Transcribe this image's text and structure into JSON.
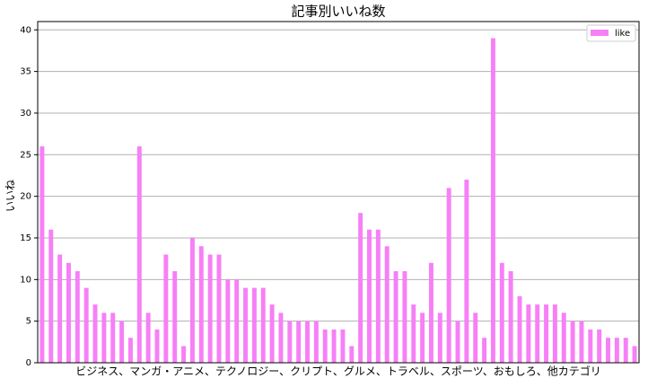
{
  "chart_data": {
    "type": "bar",
    "title": "記事別いいね数",
    "xlabel": "ビジネス、マンガ・アニメ、テクノロジー、クリプト、グルメ、トラベル、スポーツ、おもしろ、他カテゴリ",
    "ylabel": "いいね",
    "categories": [
      null,
      null,
      null,
      null,
      null,
      null,
      null,
      null,
      null,
      null,
      null,
      null,
      null,
      null,
      null,
      null,
      null,
      null,
      null,
      null,
      null,
      null,
      null,
      null,
      null,
      null,
      null,
      null,
      null,
      null,
      null,
      null,
      null,
      null,
      null,
      null,
      null,
      null,
      null,
      null,
      null,
      null,
      null,
      null,
      null,
      null,
      null,
      null,
      null,
      null,
      null,
      null,
      null,
      null,
      null,
      null,
      null,
      null,
      null,
      null,
      null,
      null,
      null,
      null,
      null,
      null,
      null,
      null
    ],
    "series": [
      {
        "name": "like",
        "color": "#f77ff7",
        "values": [
          26,
          16,
          13,
          12,
          11,
          9,
          7,
          6,
          6,
          5,
          3,
          26,
          6,
          4,
          13,
          11,
          2,
          15,
          14,
          13,
          13,
          10,
          10,
          9,
          9,
          9,
          7,
          6,
          5,
          5,
          5,
          5,
          4,
          4,
          4,
          2,
          18,
          16,
          16,
          14,
          11,
          11,
          7,
          6,
          12,
          6,
          21,
          5,
          22,
          6,
          3,
          39,
          12,
          11,
          8,
          7,
          7,
          7,
          7,
          6,
          5,
          5,
          4,
          4,
          3,
          3,
          3,
          2
        ]
      }
    ],
    "ylim": [
      0,
      41
    ],
    "yticks": [
      0,
      5,
      10,
      15,
      20,
      25,
      30,
      35,
      40
    ],
    "grid": true,
    "legend": "upper right"
  }
}
